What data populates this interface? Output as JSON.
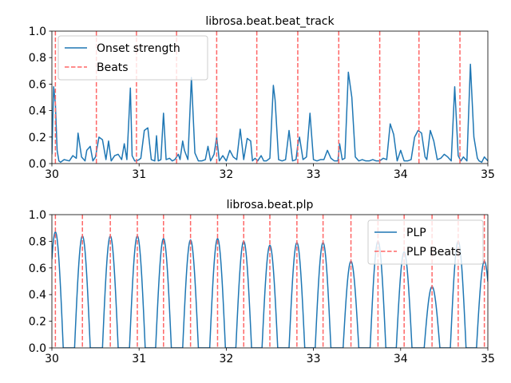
{
  "chart_data": [
    {
      "type": "line",
      "title": "librosa.beat.beat_track",
      "xlim": [
        30,
        35
      ],
      "ylim": [
        0,
        1
      ],
      "xticks": [
        30,
        31,
        32,
        33,
        34,
        35
      ],
      "yticks": [
        0.0,
        0.2,
        0.4,
        0.6,
        0.8,
        1.0
      ],
      "xtick_labels": [
        "30",
        "31",
        "32",
        "33",
        "34",
        "35"
      ],
      "ytick_labels": [
        "0.0",
        "0.2",
        "0.4",
        "0.6",
        "0.8",
        "1.0"
      ],
      "legend_position": "upper-left",
      "series": [
        {
          "name": "Onset strength",
          "color": "#1f77b4",
          "style": "solid",
          "x": [
            30.0,
            30.02,
            30.04,
            30.06,
            30.08,
            30.1,
            30.14,
            30.2,
            30.24,
            30.28,
            30.3,
            30.34,
            30.38,
            30.4,
            30.44,
            30.47,
            30.5,
            30.54,
            30.58,
            30.62,
            30.65,
            30.68,
            30.72,
            30.76,
            30.8,
            30.83,
            30.86,
            30.9,
            30.92,
            30.95,
            30.97,
            31.0,
            31.02,
            31.06,
            31.1,
            31.14,
            31.18,
            31.2,
            31.22,
            31.25,
            31.28,
            31.31,
            31.35,
            31.38,
            31.41,
            31.45,
            31.47,
            31.5,
            31.52,
            31.56,
            31.6,
            31.64,
            31.68,
            31.72,
            31.76,
            31.79,
            31.82,
            31.86,
            31.89,
            31.92,
            31.96,
            32.0,
            32.04,
            32.08,
            32.12,
            32.16,
            32.2,
            32.24,
            32.28,
            32.3,
            32.33,
            32.36,
            32.4,
            32.43,
            32.46,
            32.5,
            32.54,
            32.56,
            32.6,
            32.64,
            32.68,
            32.72,
            32.76,
            32.8,
            32.82,
            32.84,
            32.88,
            32.92,
            32.96,
            33.0,
            33.04,
            33.08,
            33.12,
            33.16,
            33.2,
            33.24,
            33.28,
            33.3,
            33.33,
            33.36,
            33.4,
            33.44,
            33.48,
            33.52,
            33.56,
            33.6,
            33.64,
            33.68,
            33.72,
            33.76,
            33.8,
            33.84,
            33.88,
            33.92,
            33.96,
            34.0,
            34.04,
            34.08,
            34.12,
            34.16,
            34.2,
            34.24,
            34.28,
            34.3,
            34.34,
            34.38,
            34.42,
            34.46,
            34.5,
            34.54,
            34.58,
            34.62,
            34.66,
            34.69,
            34.72,
            34.76,
            34.8,
            34.84,
            34.88,
            34.9,
            34.93,
            34.96,
            35.0
          ],
          "y": [
            0.07,
            0.58,
            0.45,
            0.1,
            0.02,
            0.01,
            0.03,
            0.02,
            0.06,
            0.04,
            0.23,
            0.05,
            0.02,
            0.1,
            0.13,
            0.02,
            0.05,
            0.2,
            0.18,
            0.03,
            0.17,
            0.02,
            0.06,
            0.07,
            0.03,
            0.15,
            0.03,
            0.57,
            0.06,
            0.02,
            0.02,
            0.03,
            0.04,
            0.25,
            0.27,
            0.03,
            0.02,
            0.21,
            0.02,
            0.03,
            0.38,
            0.03,
            0.04,
            0.02,
            0.03,
            0.07,
            0.03,
            0.17,
            0.1,
            0.03,
            0.65,
            0.08,
            0.02,
            0.02,
            0.03,
            0.13,
            0.02,
            0.07,
            0.2,
            0.02,
            0.06,
            0.02,
            0.1,
            0.05,
            0.03,
            0.26,
            0.03,
            0.19,
            0.17,
            0.02,
            0.04,
            0.02,
            0.06,
            0.02,
            0.02,
            0.04,
            0.59,
            0.48,
            0.03,
            0.02,
            0.03,
            0.25,
            0.02,
            0.03,
            0.14,
            0.2,
            0.03,
            0.05,
            0.38,
            0.03,
            0.02,
            0.03,
            0.03,
            0.1,
            0.04,
            0.02,
            0.02,
            0.15,
            0.03,
            0.04,
            0.69,
            0.5,
            0.05,
            0.02,
            0.03,
            0.02,
            0.02,
            0.03,
            0.02,
            0.02,
            0.04,
            0.03,
            0.3,
            0.22,
            0.02,
            0.1,
            0.02,
            0.02,
            0.03,
            0.2,
            0.25,
            0.23,
            0.05,
            0.03,
            0.25,
            0.17,
            0.03,
            0.04,
            0.07,
            0.05,
            0.02,
            0.58,
            0.06,
            0.02,
            0.05,
            0.02,
            0.75,
            0.2,
            0.04,
            0.02,
            0.01,
            0.05,
            0.02
          ]
        },
        {
          "name": "Beats",
          "color": "#ff6666",
          "style": "dashed",
          "vlines": [
            30.04,
            30.51,
            30.97,
            31.43,
            31.89,
            32.35,
            32.82,
            33.29,
            33.76,
            34.21,
            34.68
          ]
        }
      ]
    },
    {
      "type": "line",
      "title": "librosa.beat.plp",
      "xlim": [
        30,
        35
      ],
      "ylim": [
        0,
        1
      ],
      "xticks": [
        30,
        31,
        32,
        33,
        34,
        35
      ],
      "yticks": [
        0.0,
        0.2,
        0.4,
        0.6,
        0.8,
        1.0
      ],
      "xtick_labels": [
        "30",
        "31",
        "32",
        "33",
        "34",
        "35"
      ],
      "ytick_labels": [
        "0.0",
        "0.2",
        "0.4",
        "0.6",
        "0.8",
        "1.0"
      ],
      "legend_position": "upper-right",
      "series": [
        {
          "name": "PLP",
          "color": "#1f77b4",
          "style": "solid",
          "peaks": [
            {
              "x": 30.04,
              "y": 0.87
            },
            {
              "x": 30.35,
              "y": 0.84
            },
            {
              "x": 30.67,
              "y": 0.84
            },
            {
              "x": 30.98,
              "y": 0.84
            },
            {
              "x": 31.28,
              "y": 0.82
            },
            {
              "x": 31.59,
              "y": 0.81
            },
            {
              "x": 31.9,
              "y": 0.82
            },
            {
              "x": 32.2,
              "y": 0.8
            },
            {
              "x": 32.5,
              "y": 0.77
            },
            {
              "x": 32.81,
              "y": 0.79
            },
            {
              "x": 33.11,
              "y": 0.79
            },
            {
              "x": 33.43,
              "y": 0.65
            },
            {
              "x": 33.74,
              "y": 0.8
            },
            {
              "x": 34.04,
              "y": 0.72
            },
            {
              "x": 34.36,
              "y": 0.46
            },
            {
              "x": 34.66,
              "y": 0.8
            },
            {
              "x": 34.96,
              "y": 0.65
            }
          ]
        },
        {
          "name": "PLP Beats",
          "color": "#ff6666",
          "style": "dashed",
          "vlines": [
            30.04,
            30.35,
            30.67,
            30.98,
            31.28,
            31.59,
            31.9,
            32.2,
            32.5,
            32.81,
            33.11,
            33.43,
            33.74,
            34.04,
            34.36,
            34.66,
            34.96
          ]
        }
      ]
    }
  ]
}
